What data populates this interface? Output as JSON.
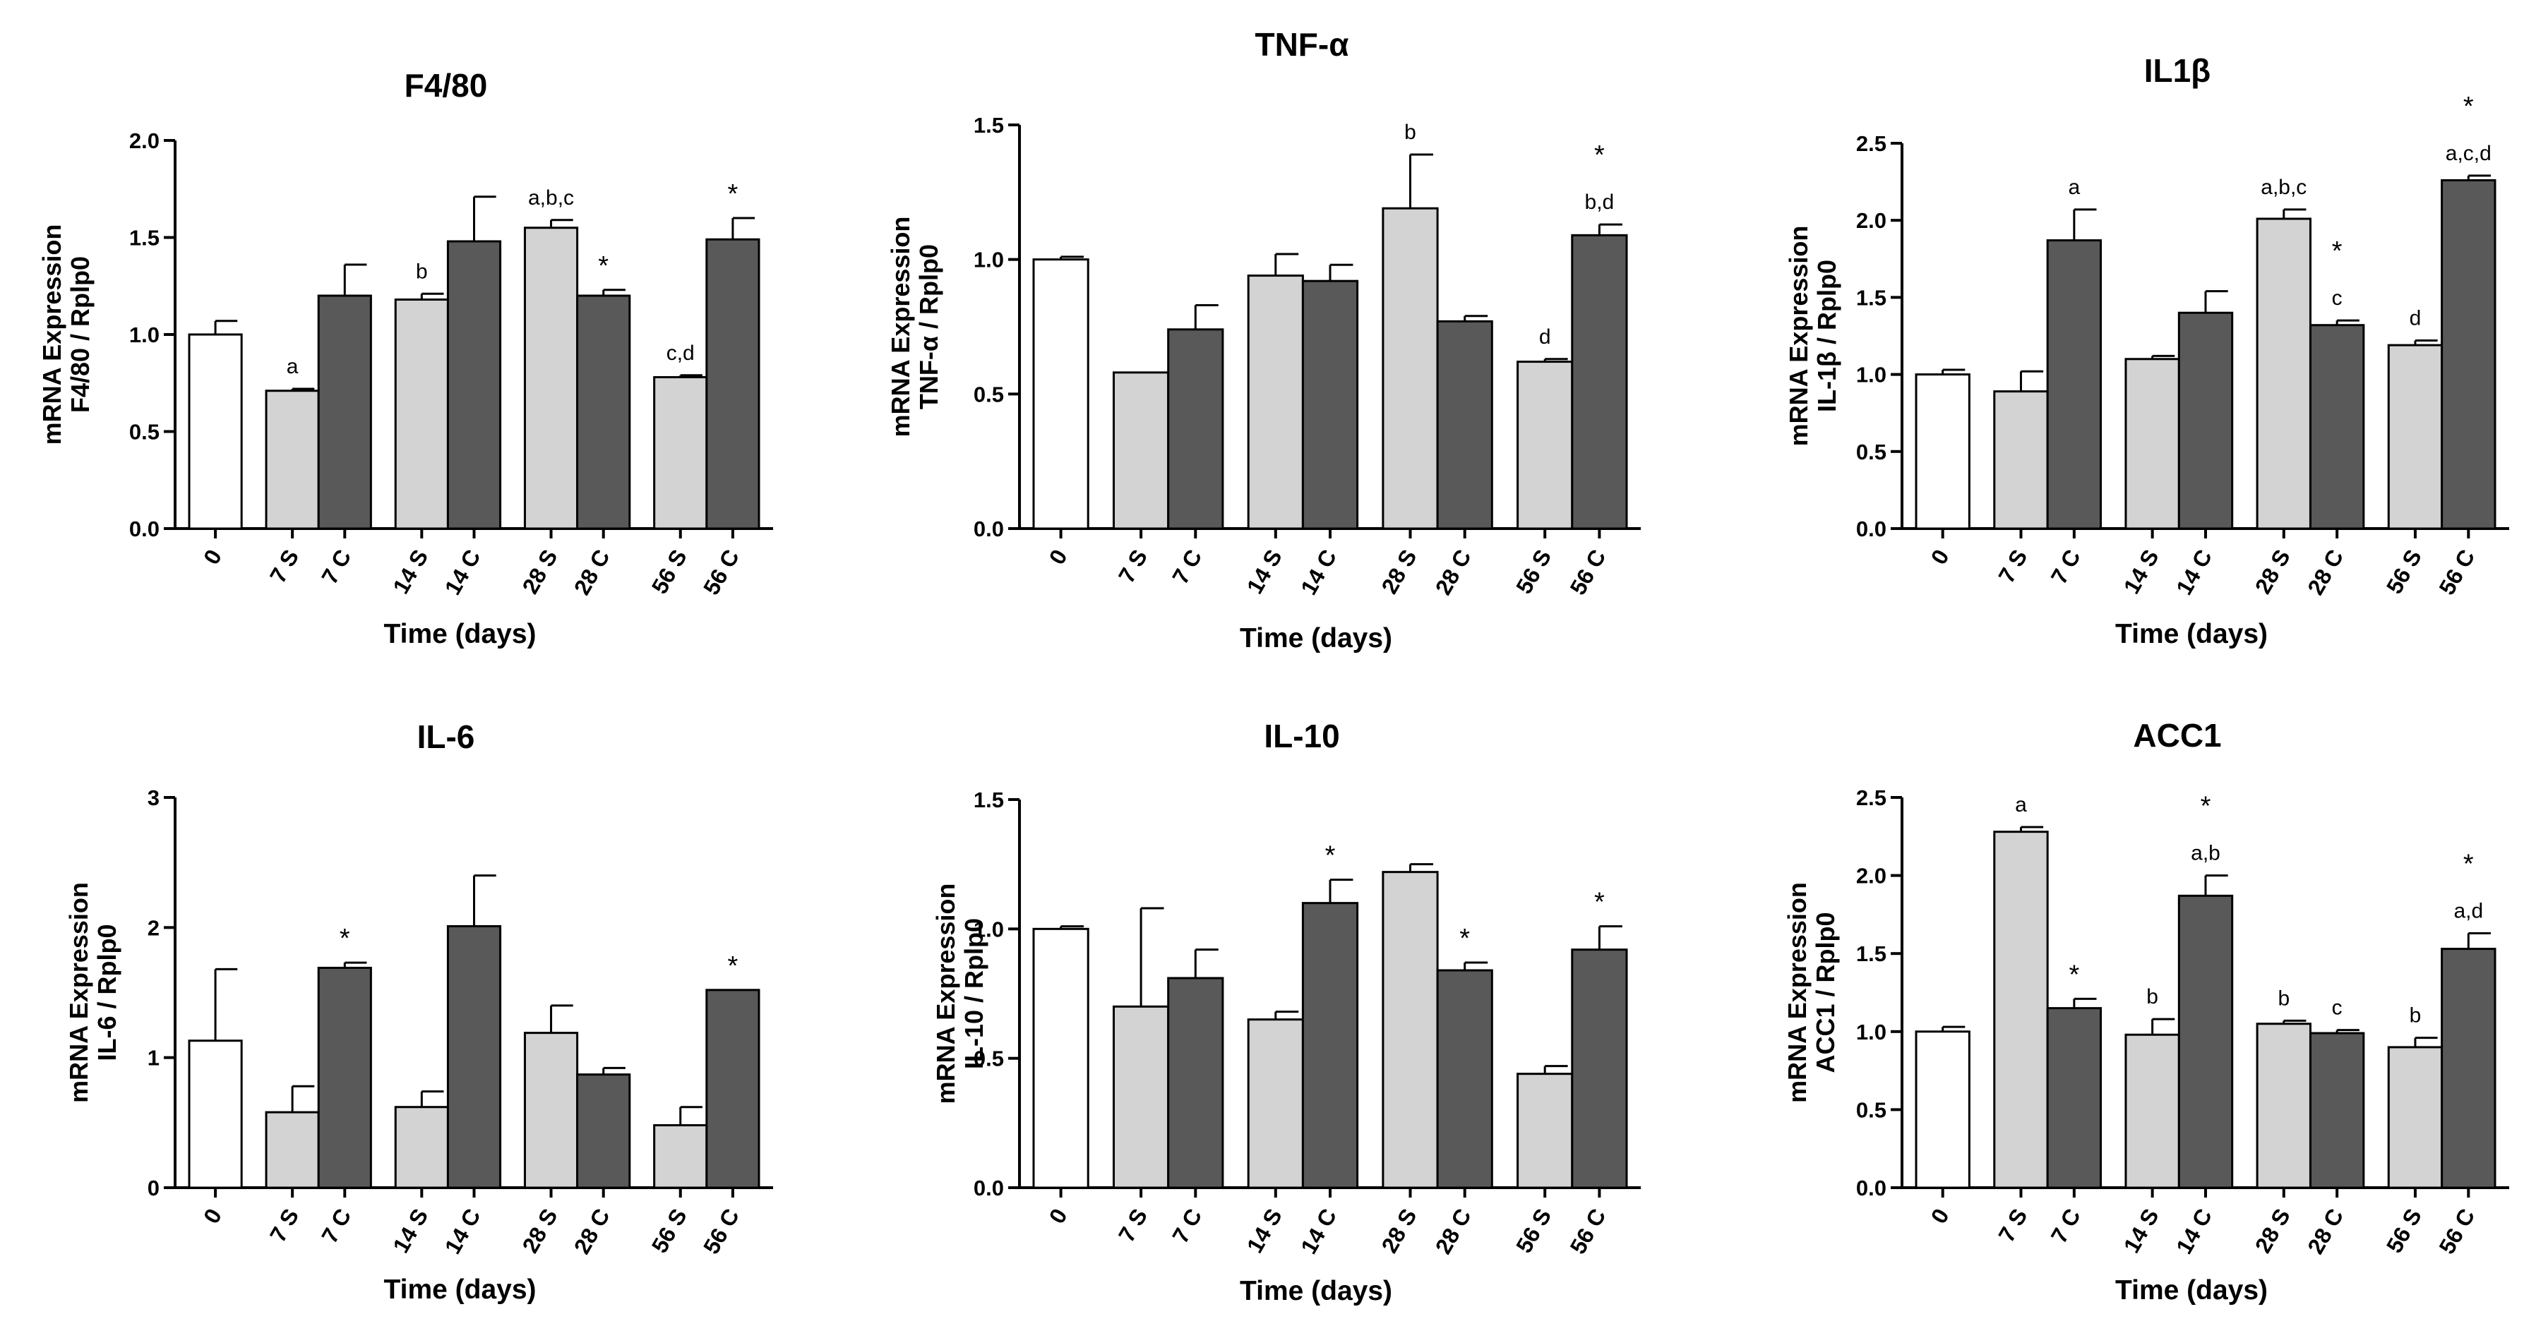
{
  "colors": {
    "control": "#ffffff",
    "S": "#d3d3d3",
    "C": "#595959",
    "stroke": "#000000"
  },
  "chart_data": [
    {
      "type": "bar",
      "title": "F4/80",
      "ylabel_line1": "mRNA Expression",
      "ylabel_line2": "F4/80 / Rplp0",
      "xlabel": "Time (days)",
      "ylim": [
        0,
        2.0
      ],
      "yticks": [
        "0.0",
        "0.5",
        "1.0",
        "1.5",
        "2.0"
      ],
      "categories": [
        "0",
        "7 S",
        "7 C",
        "14 S",
        "14 C",
        "28 S",
        "28 C",
        "56 S",
        "56 C"
      ],
      "groups": [
        "control",
        "S",
        "C",
        "S",
        "C",
        "S",
        "C",
        "S",
        "C"
      ],
      "values": [
        1.0,
        0.71,
        1.2,
        1.18,
        1.48,
        1.55,
        1.2,
        0.78,
        1.49
      ],
      "errors": [
        0.07,
        0.01,
        0.16,
        0.03,
        0.23,
        0.04,
        0.03,
        0.01,
        0.11
      ],
      "annotations": [
        "",
        "a",
        "",
        "b",
        "",
        "a,b,c",
        "*",
        "c,d",
        "*"
      ]
    },
    {
      "type": "bar",
      "title": "TNF-α",
      "ylabel_line1": "mRNA Expression",
      "ylabel_line2": "TNF-α / Rplp0",
      "xlabel": "Time (days)",
      "ylim": [
        0,
        1.5
      ],
      "yticks": [
        "0.0",
        "0.5",
        "1.0",
        "1.5"
      ],
      "categories": [
        "0",
        "7 S",
        "7 C",
        "14 S",
        "14 C",
        "28 S",
        "28 C",
        "56 S",
        "56 C"
      ],
      "groups": [
        "control",
        "S",
        "C",
        "S",
        "C",
        "S",
        "C",
        "S",
        "C"
      ],
      "values": [
        1.0,
        0.58,
        0.74,
        0.94,
        0.92,
        1.19,
        0.77,
        0.62,
        1.09
      ],
      "errors": [
        0.01,
        0.0,
        0.09,
        0.08,
        0.06,
        0.2,
        0.02,
        0.01,
        0.04
      ],
      "annotations": [
        "",
        "",
        "",
        "",
        "",
        "b",
        "",
        "d",
        "b,d"
      ],
      "stars": [
        "",
        "",
        "",
        "",
        "",
        "",
        "",
        "",
        "*"
      ]
    },
    {
      "type": "bar",
      "title": "IL1β",
      "ylabel_line1": "mRNA Expression",
      "ylabel_line2": "IL-1β / Rplp0",
      "xlabel": "Time (days)",
      "ylim": [
        0,
        2.5
      ],
      "yticks": [
        "0.0",
        "0.5",
        "1.0",
        "1.5",
        "2.0",
        "2.5"
      ],
      "categories": [
        "0",
        "7 S",
        "7 C",
        "14 S",
        "14 C",
        "28 S",
        "28 C",
        "56 S",
        "56 C"
      ],
      "groups": [
        "control",
        "S",
        "C",
        "S",
        "C",
        "S",
        "C",
        "S",
        "C"
      ],
      "values": [
        1.0,
        0.89,
        1.87,
        1.1,
        1.4,
        2.01,
        1.32,
        1.19,
        2.26
      ],
      "errors": [
        0.03,
        0.13,
        0.2,
        0.02,
        0.14,
        0.06,
        0.03,
        0.03,
        0.03
      ],
      "annotations": [
        "",
        "",
        "a",
        "",
        "",
        "a,b,c",
        "c",
        "d",
        "a,c,d"
      ],
      "stars": [
        "",
        "",
        "",
        "",
        "",
        "",
        "*",
        "",
        "*"
      ]
    },
    {
      "type": "bar",
      "title": "IL-6",
      "ylabel_line1": "mRNA Expression",
      "ylabel_line2": "IL-6 / Rplp0",
      "xlabel": "Time (days)",
      "ylim": [
        0,
        3
      ],
      "yticks": [
        "0",
        "1",
        "2",
        "3"
      ],
      "categories": [
        "0",
        "7 S",
        "7 C",
        "14 S",
        "14 C",
        "28 S",
        "28 C",
        "56 S",
        "56 C"
      ],
      "groups": [
        "control",
        "S",
        "C",
        "S",
        "C",
        "S",
        "C",
        "S",
        "C"
      ],
      "values": [
        1.13,
        0.58,
        1.69,
        0.62,
        2.01,
        1.19,
        0.87,
        0.48,
        1.52
      ],
      "errors": [
        0.55,
        0.2,
        0.04,
        0.12,
        0.39,
        0.21,
        0.05,
        0.14,
        0.0
      ],
      "annotations": [
        "",
        "",
        "*",
        "",
        "",
        "",
        "",
        "",
        "*"
      ]
    },
    {
      "type": "bar",
      "title": "IL-10",
      "ylabel_line1": "mRNA Expression",
      "ylabel_line2": "IL-10 / Rplp0",
      "xlabel": "Time (days)",
      "ylim": [
        0,
        1.5
      ],
      "yticks": [
        "0.0",
        "0.5",
        "1.0",
        "1.5"
      ],
      "categories": [
        "0",
        "7 S",
        "7 C",
        "14 S",
        "14 C",
        "28 S",
        "28 C",
        "56 S",
        "56 C"
      ],
      "groups": [
        "control",
        "S",
        "C",
        "S",
        "C",
        "S",
        "C",
        "S",
        "C"
      ],
      "values": [
        1.0,
        0.7,
        0.81,
        0.65,
        1.1,
        1.22,
        0.84,
        0.44,
        0.92
      ],
      "errors": [
        0.01,
        0.38,
        0.11,
        0.03,
        0.09,
        0.03,
        0.03,
        0.03,
        0.09
      ],
      "annotations": [
        "",
        "",
        "",
        "",
        "*",
        "",
        "*",
        "",
        "*"
      ]
    },
    {
      "type": "bar",
      "title": "ACC1",
      "ylabel_line1": "mRNA Expression",
      "ylabel_line2": "ACC1 / Rplp0",
      "xlabel": "Time (days)",
      "ylim": [
        0,
        2.5
      ],
      "yticks": [
        "0.0",
        "0.5",
        "1.0",
        "1.5",
        "2.0",
        "2.5"
      ],
      "categories": [
        "0",
        "7 S",
        "7 C",
        "14 S",
        "14 C",
        "28 S",
        "28 C",
        "56 S",
        "56 C"
      ],
      "groups": [
        "control",
        "S",
        "C",
        "S",
        "C",
        "S",
        "C",
        "S",
        "C"
      ],
      "values": [
        1.0,
        2.28,
        1.15,
        0.98,
        1.87,
        1.05,
        0.99,
        0.9,
        1.53
      ],
      "errors": [
        0.03,
        0.03,
        0.06,
        0.1,
        0.13,
        0.02,
        0.02,
        0.06,
        0.1
      ],
      "annotations": [
        "",
        "a",
        "*",
        "b",
        "a,b",
        "b",
        "c",
        "b",
        "a,d"
      ],
      "stars": [
        "",
        "",
        "",
        "",
        "*",
        "",
        "",
        "",
        "*"
      ]
    }
  ]
}
